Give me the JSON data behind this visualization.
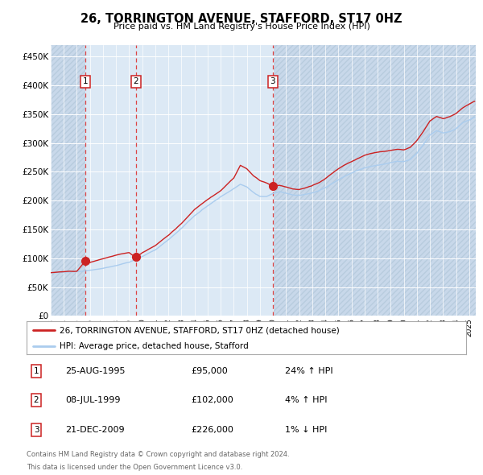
{
  "title": "26, TORRINGTON AVENUE, STAFFORD, ST17 0HZ",
  "subtitle": "Price paid vs. HM Land Registry's House Price Index (HPI)",
  "legend_line1": "26, TORRINGTON AVENUE, STAFFORD, ST17 0HZ (detached house)",
  "legend_line2": "HPI: Average price, detached house, Stafford",
  "table": [
    {
      "num": 1,
      "date": "25-AUG-1995",
      "price": "£95,000",
      "hpi": "24% ↑ HPI"
    },
    {
      "num": 2,
      "date": "08-JUL-1999",
      "price": "£102,000",
      "hpi": "4% ↑ HPI"
    },
    {
      "num": 3,
      "date": "21-DEC-2009",
      "price": "£226,000",
      "hpi": "1% ↓ HPI"
    }
  ],
  "footnote1": "Contains HM Land Registry data © Crown copyright and database right 2024.",
  "footnote2": "This data is licensed under the Open Government Licence v3.0.",
  "sale_dates": [
    1995.646,
    1999.521,
    2009.972
  ],
  "sale_prices": [
    95000,
    102000,
    226000
  ],
  "ylim": [
    0,
    470000
  ],
  "xlim_start": 1993.0,
  "xlim_end": 2025.5,
  "yticks": [
    0,
    50000,
    100000,
    150000,
    200000,
    250000,
    300000,
    350000,
    400000,
    450000
  ],
  "ytick_labels": [
    "£0",
    "£50K",
    "£100K",
    "£150K",
    "£200K",
    "£250K",
    "£300K",
    "£350K",
    "£400K",
    "£450K"
  ],
  "xtick_years": [
    1993,
    1994,
    1995,
    1996,
    1997,
    1998,
    1999,
    2000,
    2001,
    2002,
    2003,
    2004,
    2005,
    2006,
    2007,
    2008,
    2009,
    2010,
    2011,
    2012,
    2013,
    2014,
    2015,
    2016,
    2017,
    2018,
    2019,
    2020,
    2021,
    2022,
    2023,
    2024,
    2025
  ],
  "bg_color": "#dce9f5",
  "hatch_color": "#c8d8ea",
  "grid_color": "#ffffff",
  "red_line_color": "#cc2222",
  "blue_line_color": "#aaccee",
  "marker_color": "#cc2222",
  "dashed_line_color": "#dd4444",
  "box_color": "#cc2222"
}
